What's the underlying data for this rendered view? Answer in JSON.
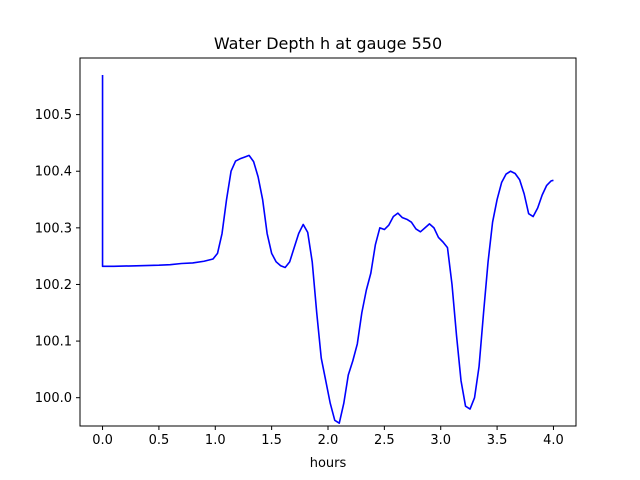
{
  "chart_data": {
    "type": "line",
    "title": "Water Depth h at gauge 550",
    "xlabel": "hours",
    "ylabel": "",
    "xlim": [
      -0.2,
      4.2
    ],
    "ylim": [
      99.95,
      100.6
    ],
    "xticks": [
      0.0,
      0.5,
      1.0,
      1.5,
      2.0,
      2.5,
      3.0,
      3.5,
      4.0
    ],
    "xtick_labels": [
      "0.0",
      "0.5",
      "1.0",
      "1.5",
      "2.0",
      "2.5",
      "3.0",
      "3.5",
      "4.0"
    ],
    "yticks": [
      100.0,
      100.1,
      100.2,
      100.3,
      100.4,
      100.5
    ],
    "ytick_labels": [
      "100.0",
      "100.1",
      "100.2",
      "100.3",
      "100.4",
      "100.5"
    ],
    "grid": false,
    "series": [
      {
        "color": "#0000ff",
        "points": [
          [
            0.0,
            100.57
          ],
          [
            0.0,
            100.232
          ],
          [
            0.1,
            100.232
          ],
          [
            0.3,
            100.233
          ],
          [
            0.5,
            100.234
          ],
          [
            0.6,
            100.235
          ],
          [
            0.7,
            100.237
          ],
          [
            0.8,
            100.238
          ],
          [
            0.9,
            100.241
          ],
          [
            0.98,
            100.245
          ],
          [
            1.02,
            100.255
          ],
          [
            1.06,
            100.29
          ],
          [
            1.1,
            100.35
          ],
          [
            1.14,
            100.4
          ],
          [
            1.18,
            100.418
          ],
          [
            1.22,
            100.422
          ],
          [
            1.26,
            100.425
          ],
          [
            1.3,
            100.428
          ],
          [
            1.34,
            100.417
          ],
          [
            1.38,
            100.39
          ],
          [
            1.42,
            100.35
          ],
          [
            1.46,
            100.29
          ],
          [
            1.5,
            100.255
          ],
          [
            1.54,
            100.24
          ],
          [
            1.58,
            100.233
          ],
          [
            1.62,
            100.23
          ],
          [
            1.66,
            100.24
          ],
          [
            1.7,
            100.265
          ],
          [
            1.74,
            100.29
          ],
          [
            1.78,
            100.306
          ],
          [
            1.82,
            100.292
          ],
          [
            1.86,
            100.24
          ],
          [
            1.9,
            100.15
          ],
          [
            1.94,
            100.07
          ],
          [
            1.98,
            100.03
          ],
          [
            2.02,
            99.99
          ],
          [
            2.06,
            99.96
          ],
          [
            2.1,
            99.955
          ],
          [
            2.14,
            99.99
          ],
          [
            2.18,
            100.04
          ],
          [
            2.22,
            100.065
          ],
          [
            2.26,
            100.095
          ],
          [
            2.3,
            100.15
          ],
          [
            2.34,
            100.19
          ],
          [
            2.38,
            100.22
          ],
          [
            2.42,
            100.27
          ],
          [
            2.46,
            100.3
          ],
          [
            2.5,
            100.297
          ],
          [
            2.54,
            100.305
          ],
          [
            2.58,
            100.32
          ],
          [
            2.62,
            100.326
          ],
          [
            2.66,
            100.318
          ],
          [
            2.7,
            100.315
          ],
          [
            2.74,
            100.31
          ],
          [
            2.78,
            100.298
          ],
          [
            2.82,
            100.293
          ],
          [
            2.86,
            100.3
          ],
          [
            2.9,
            100.307
          ],
          [
            2.94,
            100.3
          ],
          [
            2.98,
            100.283
          ],
          [
            3.02,
            100.275
          ],
          [
            3.06,
            100.265
          ],
          [
            3.1,
            100.2
          ],
          [
            3.14,
            100.11
          ],
          [
            3.18,
            100.03
          ],
          [
            3.22,
            99.985
          ],
          [
            3.26,
            99.98
          ],
          [
            3.3,
            100.0
          ],
          [
            3.34,
            100.055
          ],
          [
            3.38,
            100.15
          ],
          [
            3.42,
            100.24
          ],
          [
            3.46,
            100.31
          ],
          [
            3.5,
            100.35
          ],
          [
            3.54,
            100.38
          ],
          [
            3.58,
            100.395
          ],
          [
            3.62,
            100.4
          ],
          [
            3.66,
            100.396
          ],
          [
            3.7,
            100.385
          ],
          [
            3.74,
            100.36
          ],
          [
            3.78,
            100.325
          ],
          [
            3.82,
            100.32
          ],
          [
            3.86,
            100.335
          ],
          [
            3.9,
            100.358
          ],
          [
            3.94,
            100.375
          ],
          [
            3.98,
            100.383
          ],
          [
            4.0,
            100.384
          ]
        ]
      }
    ]
  }
}
